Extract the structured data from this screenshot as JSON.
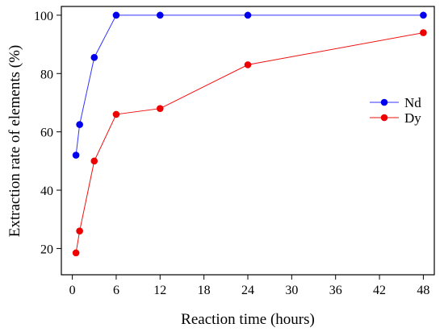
{
  "chart_data": {
    "type": "line",
    "xlabel": "Reaction time (hours)",
    "ylabel": "Extraction rate of elements (%)",
    "xlim": [
      -1.5,
      49.5
    ],
    "ylim": [
      11,
      103
    ],
    "xticks": [
      0,
      6,
      12,
      18,
      24,
      30,
      36,
      42,
      48
    ],
    "yticks": [
      20,
      40,
      60,
      80,
      100
    ],
    "grid": false,
    "legend_position": "right",
    "series": [
      {
        "name": "Nd",
        "color": "#3333ff",
        "points": [
          [
            0.5,
            52
          ],
          [
            1,
            62.5
          ],
          [
            3,
            85.5
          ],
          [
            6,
            100
          ],
          [
            12,
            100
          ],
          [
            24,
            100
          ],
          [
            48,
            100
          ]
        ]
      },
      {
        "name": "Dy",
        "color": "#ee1111",
        "points": [
          [
            0.5,
            18.5
          ],
          [
            1,
            26
          ],
          [
            3,
            50
          ],
          [
            6,
            66
          ],
          [
            12,
            68
          ],
          [
            24,
            83
          ],
          [
            48,
            94
          ]
        ]
      }
    ]
  }
}
